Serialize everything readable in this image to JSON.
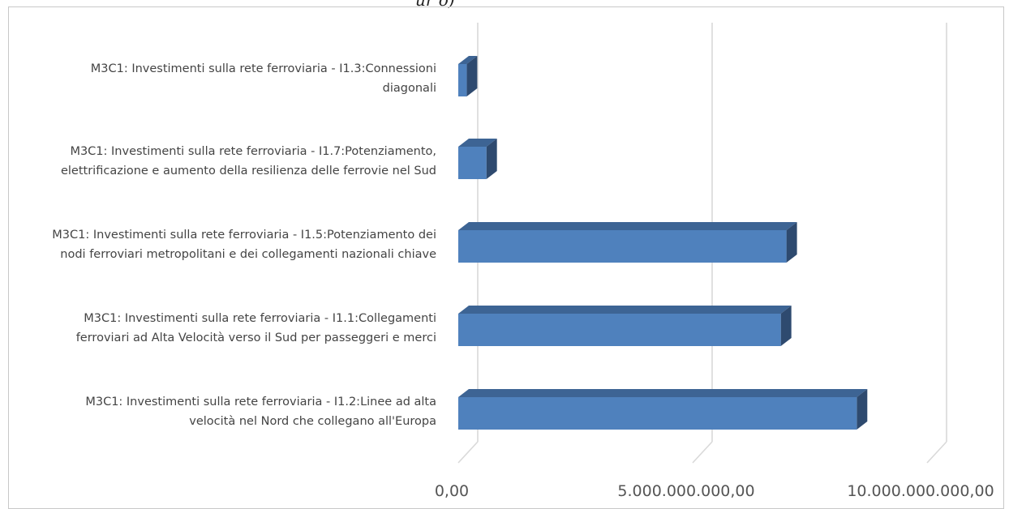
{
  "caption_fragment": "ur o)",
  "chart_data": {
    "type": "bar",
    "orientation": "horizontal",
    "style": "3d",
    "title": "",
    "xlabel": "",
    "ylabel": "",
    "xlim": [
      0,
      10000000000
    ],
    "x_ticks": [
      {
        "value": 0,
        "label": "0,00"
      },
      {
        "value": 5000000000,
        "label": "5.000.000.000,00"
      },
      {
        "value": 10000000000,
        "label": "10.000.000.000,00"
      }
    ],
    "grid": true,
    "bar_color": "#4f81bd",
    "bar_side_color": "#2e4a6f",
    "bar_top_color": "#3d6494",
    "gridline_color": "#d9d9d9",
    "categories": [
      {
        "lines": [
          "M3C1: Investimenti sulla rete ferroviaria - I1.3:Connessioni",
          "diagonali"
        ]
      },
      {
        "lines": [
          "M3C1: Investimenti sulla rete ferroviaria - I1.7:Potenziamento,",
          "elettrificazione e aumento della resilienza delle ferrovie nel Sud"
        ]
      },
      {
        "lines": [
          "M3C1: Investimenti sulla rete ferroviaria - I1.5:Potenziamento dei",
          "nodi ferroviari metropolitani e dei collegamenti nazionali chiave"
        ]
      },
      {
        "lines": [
          "M3C1: Investimenti sulla rete ferroviaria - I1.1:Collegamenti",
          "ferroviari ad Alta Velocità verso il Sud per passeggeri e merci"
        ]
      },
      {
        "lines": [
          "M3C1: Investimenti sulla rete ferroviaria - I1.2:Linee ad alta",
          "velocità nel Nord che collegano all'Europa"
        ]
      }
    ],
    "values": [
      180000000,
      600000000,
      7000000000,
      6880000000,
      8500000000
    ]
  }
}
